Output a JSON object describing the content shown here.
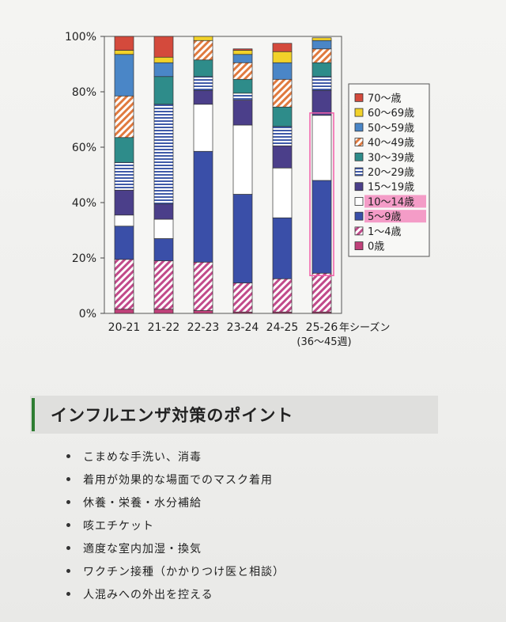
{
  "chart_data": {
    "type": "bar",
    "stacked": true,
    "percent": true,
    "categories": [
      "20-21",
      "21-22",
      "22-23",
      "23-24",
      "24-25",
      "25-26"
    ],
    "category_sublabel": "(36～45週)",
    "xlabel": "年シーズン",
    "ylim": [
      0,
      100
    ],
    "yticks": [
      "0%",
      "20%",
      "40%",
      "60%",
      "80%",
      "100%"
    ],
    "legend_position": "right",
    "series": [
      {
        "name": "0歳",
        "color": "#c0417a",
        "pattern": "solid",
        "values": [
          1.5,
          1.5,
          1,
          0.5,
          0.5,
          0.5
        ]
      },
      {
        "name": "1～4歳",
        "color": "#c14a8a",
        "pattern": "diag",
        "values": [
          18,
          17.5,
          17.5,
          10.5,
          12,
          14
        ]
      },
      {
        "name": "5～9歳",
        "color": "#3a4fa8",
        "pattern": "solid",
        "values": [
          12,
          8,
          40,
          32,
          22,
          33.5
        ]
      },
      {
        "name": "10～14歳",
        "color": "#ffffff",
        "pattern": "solid",
        "values": [
          4,
          7,
          17,
          25,
          18,
          23.5
        ]
      },
      {
        "name": "15～19歳",
        "color": "#4b3f8a",
        "pattern": "solid",
        "values": [
          9,
          5.5,
          5,
          9,
          8,
          9
        ]
      },
      {
        "name": "20～29歳",
        "color": "#3f5aa8",
        "pattern": "hlines",
        "values": [
          10,
          36,
          5,
          2.5,
          7,
          5
        ]
      },
      {
        "name": "30～39歳",
        "color": "#2e8c8a",
        "pattern": "solid",
        "values": [
          9,
          10,
          6,
          5,
          7,
          5
        ]
      },
      {
        "name": "40～49歳",
        "color": "#e07a3f",
        "pattern": "diag",
        "values": [
          15,
          0,
          7,
          6,
          10,
          5
        ]
      },
      {
        "name": "50～59歳",
        "color": "#4a86c7",
        "pattern": "solid",
        "values": [
          15,
          5,
          0,
          3,
          6,
          3
        ]
      },
      {
        "name": "60～69歳",
        "color": "#f2d229",
        "pattern": "solid",
        "values": [
          1.5,
          2,
          1.5,
          1.5,
          4,
          1
        ]
      },
      {
        "name": "70～歳",
        "color": "#d44a3c",
        "pattern": "solid",
        "values": [
          5,
          7.5,
          0,
          0.5,
          3,
          0
        ]
      }
    ],
    "highlight": {
      "category": "25-26",
      "series": [
        "5～9歳",
        "10～14歳"
      ],
      "color": "#f25fa8"
    }
  },
  "section": {
    "title": "インフルエンザ対策のポイント"
  },
  "points": [
    "こまめな手洗い、消毒",
    "着用が効果的な場面でのマスク着用",
    "休養・栄養・水分補給",
    "咳エチケット",
    "適度な室内加湿・換気",
    "ワクチン接種（かかりつけ医と相談）",
    "人混みへの外出を控える"
  ]
}
